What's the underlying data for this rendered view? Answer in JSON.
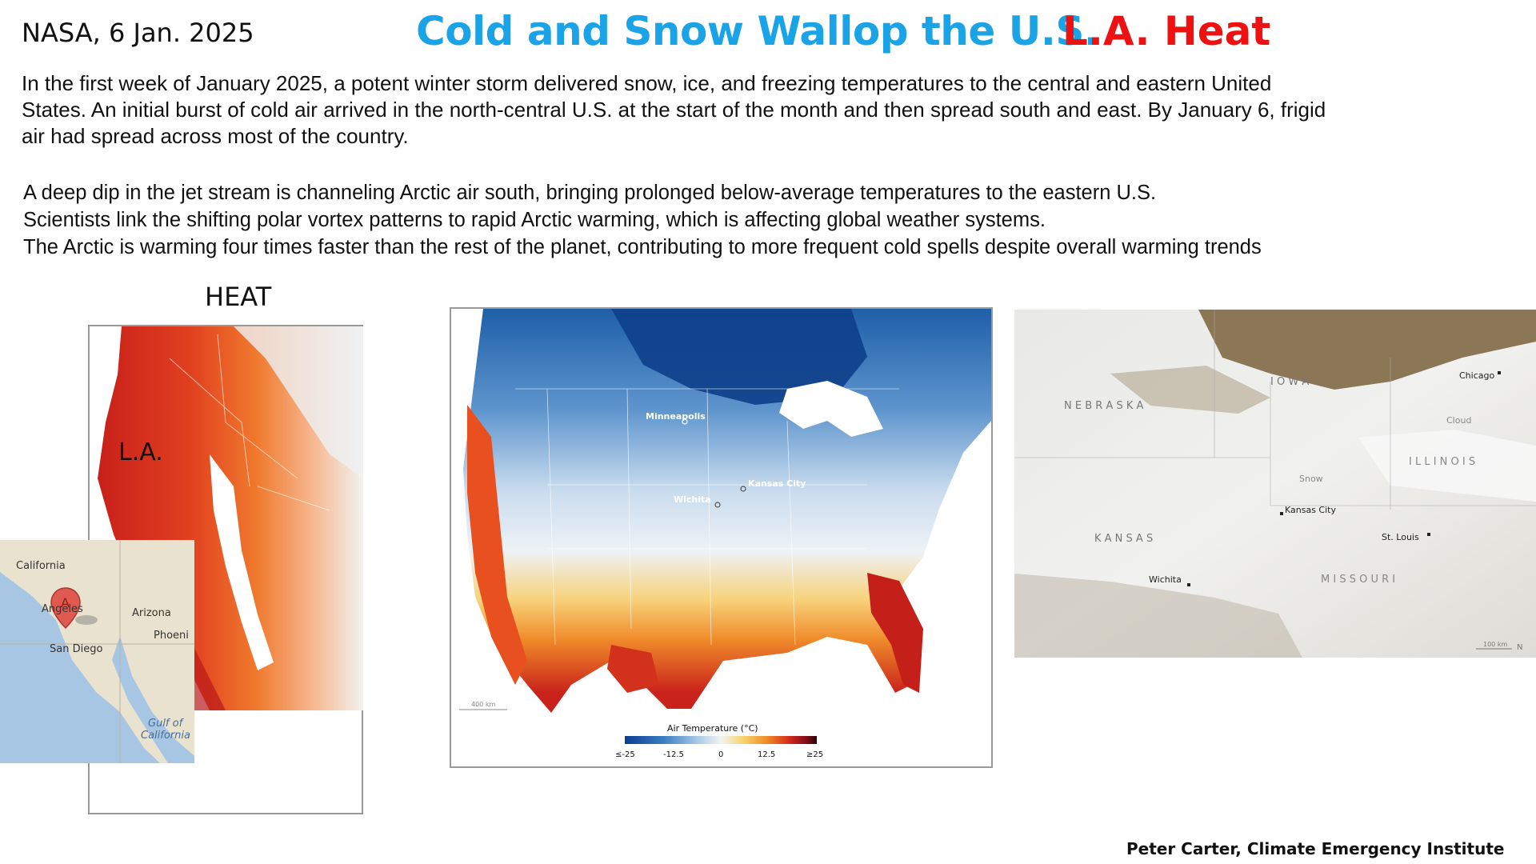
{
  "header": {
    "source": "NASA, 6 Jan. 2025",
    "title": "Cold and Snow Wallop the U.S.",
    "title_secondary": "L.A. Heat",
    "title_color": "#1aa3e6",
    "title_secondary_color": "#ee1111"
  },
  "intro": {
    "lines": [
      "In the first week of January 2025, a potent winter storm delivered snow, ice, and freezing temperatures to the central and eastern United",
      "States. An initial burst of cold air arrived in the north-central U.S. at the start of the month and then spread south and east. By January 6, frigid",
      "air had spread across most of the country."
    ]
  },
  "bullets": [
    "A deep dip in the jet stream is channeling Arctic air south, bringing prolonged below-average temperatures to the eastern U.S.",
    "Scientists link the shifting polar vortex patterns to rapid Arctic warming, which is affecting global weather systems.",
    "The Arctic is warming four times faster than the rest of the planet, contributing to more frequent cold spells despite overall warming trends"
  ],
  "la_panel": {
    "heading": "HEAT",
    "label": "L.A.",
    "inset": {
      "california": "California",
      "arizona": "Arizona",
      "angeles": "Angeles",
      "phoenix": "Phoeni",
      "san_diego": "San Diego",
      "gulf_1": "Gulf of",
      "gulf_2": "California",
      "marker": "A"
    }
  },
  "temp_map": {
    "cities": {
      "minneapolis": "Minneapolis",
      "kansas_city": "Kansas City",
      "wichita": "Wichita"
    },
    "scale_label": "400 km",
    "legend_title": "Air Temperature (°C)",
    "legend_ticks": [
      "≤-25",
      "-12.5",
      "0",
      "12.5",
      "≥25"
    ],
    "legend_colors": [
      "#0b3d91",
      "#3a7cc2",
      "#a9c9e6",
      "#f3f3f3",
      "#f6d36a",
      "#f08a24",
      "#d2281b",
      "#7a0c14",
      "#2a0208"
    ]
  },
  "sat_map": {
    "labels": {
      "nebraska": "N E B R A S K A",
      "iowa": "I O W A",
      "illinois": "I L L I N O I S",
      "kansas": "K A N S A S",
      "missouri": "M I S S O U R I",
      "chicago": "Chicago",
      "cloud": "Cloud",
      "snow": "Snow",
      "kansas_city": "Kansas City",
      "st_louis": "St. Louis",
      "wichita": "Wichita",
      "scale": "100 km",
      "north": "N"
    }
  },
  "credit": "Peter Carter,  Climate Emergency Institute"
}
